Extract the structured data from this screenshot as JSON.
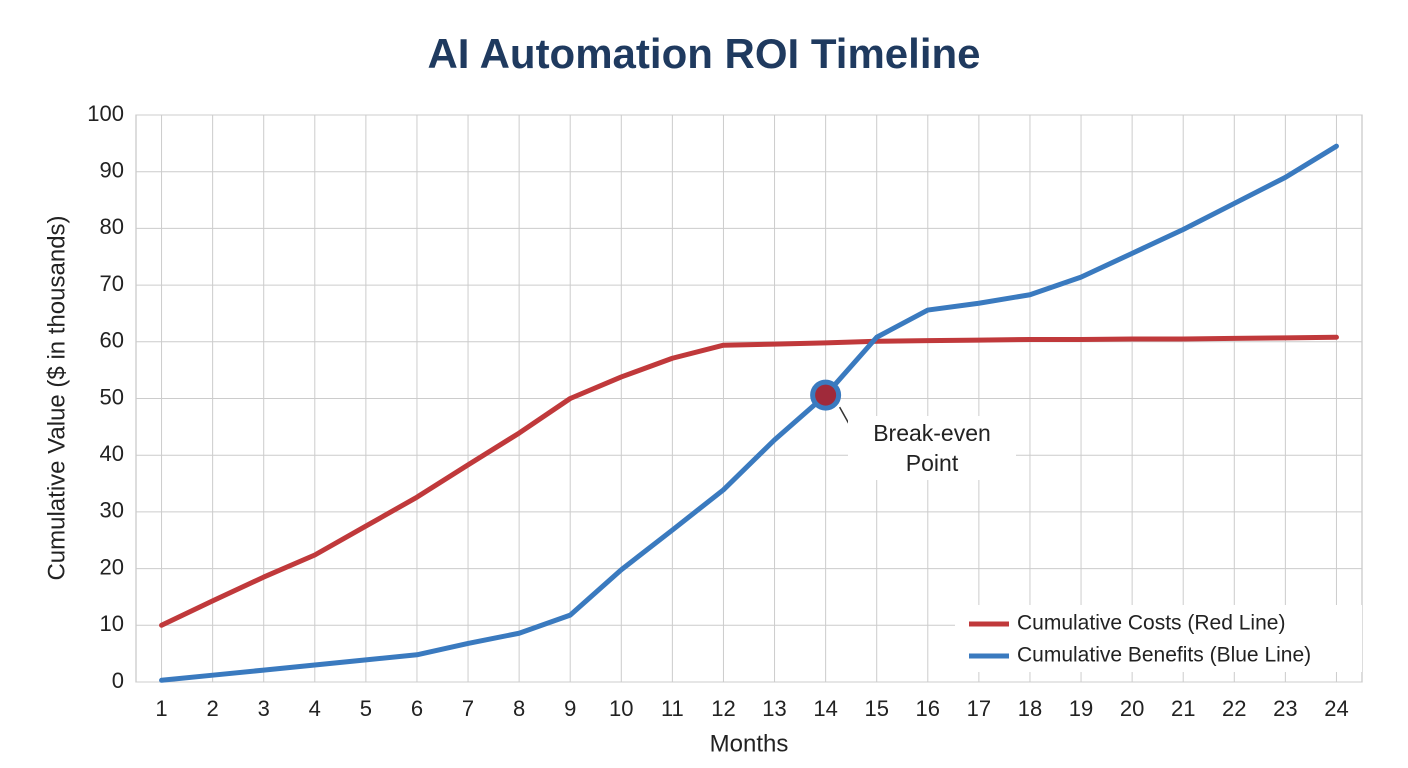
{
  "chart_data": {
    "type": "line",
    "title": "AI Automation ROI Timeline",
    "x_label": "Months",
    "y_label": "Cumulative Value ($ in thousands)",
    "x": [
      1,
      2,
      3,
      4,
      5,
      6,
      7,
      8,
      9,
      10,
      11,
      12,
      13,
      14,
      15,
      16,
      17,
      18,
      19,
      20,
      21,
      22,
      23,
      24
    ],
    "series": [
      {
        "name": "Cumulative Costs (Red Line)",
        "color": "#c0393b",
        "values": [
          10,
          14.3,
          18.5,
          22.4,
          27.5,
          32.6,
          38.3,
          43.9,
          50,
          53.8,
          57.1,
          59.4,
          59.6,
          59.8,
          60.1,
          60.2,
          60.3,
          60.4,
          60.4,
          60.5,
          60.5,
          60.6,
          60.7,
          60.8
        ]
      },
      {
        "name": "Cumulative Benefits (Blue Line)",
        "color": "#3a7abf",
        "values": [
          0.3,
          1.2,
          2.1,
          3,
          3.9,
          4.8,
          6.8,
          8.6,
          11.8,
          19.8,
          26.8,
          33.9,
          42.7,
          50.6,
          60.8,
          65.6,
          66.8,
          68.3,
          71.4,
          75.6,
          79.8,
          84.4,
          89,
          94.5
        ]
      }
    ],
    "annotation": {
      "text": "Break-even Point",
      "series": 1,
      "index": 13
    },
    "xlim": [
      0.5,
      24.5
    ],
    "xticks": [
      1,
      2,
      3,
      4,
      5,
      6,
      7,
      8,
      9,
      10,
      11,
      12,
      13,
      14,
      15,
      16,
      17,
      18,
      19,
      20,
      21,
      22,
      23,
      24
    ],
    "ylim": [
      0,
      100
    ],
    "yticks": [
      0,
      10,
      20,
      30,
      40,
      50,
      60,
      70,
      80,
      90,
      100
    ],
    "grid": true,
    "legend": "bottom-right"
  }
}
